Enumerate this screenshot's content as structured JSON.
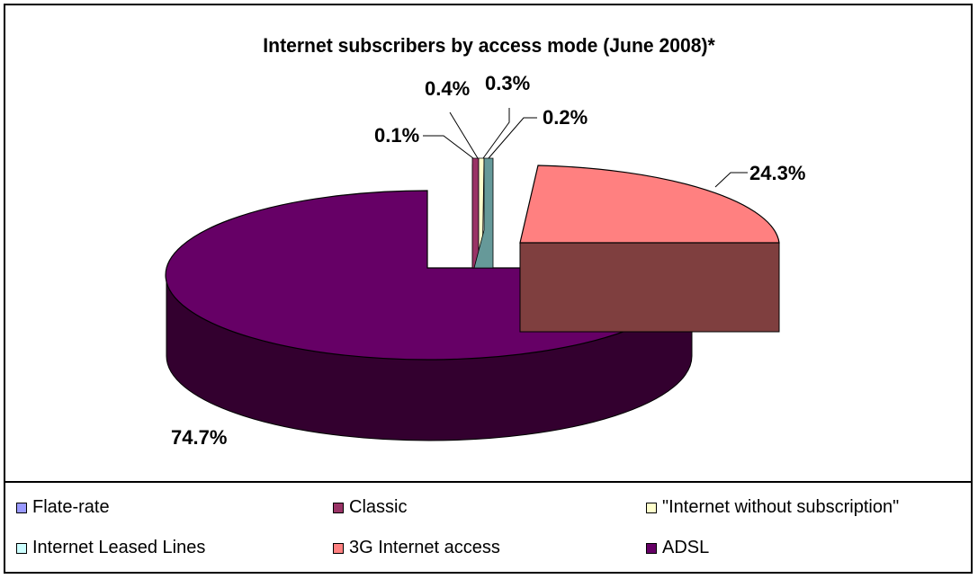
{
  "chart_data": {
    "type": "pie",
    "title": "Internet subscribers by access mode (June 2008)*",
    "slices": [
      {
        "name": "Flate-rate",
        "value": 0.1,
        "label": "0.1%",
        "color": "#9999ff"
      },
      {
        "name": "Classic",
        "value": 0.4,
        "label": "0.4%",
        "color": "#993366"
      },
      {
        "name": "\"Internet without subscription\"",
        "value": 0.3,
        "label": "0.3%",
        "color": "#ffffcc"
      },
      {
        "name": "Internet Leased Lines",
        "value": 0.2,
        "label": "0.2%",
        "color": "#ccffff"
      },
      {
        "name": "3G Internet access",
        "value": 24.3,
        "label": "24.3%",
        "color": "#ff8080"
      },
      {
        "name": "ADSL",
        "value": 74.7,
        "label": "74.7%",
        "color": "#660066"
      }
    ],
    "legend_position": "bottom"
  }
}
